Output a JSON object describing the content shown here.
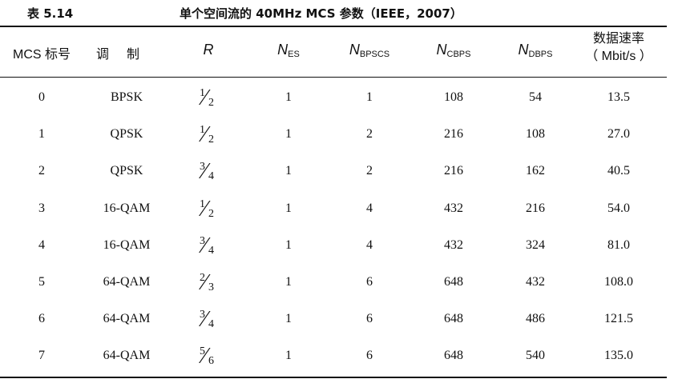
{
  "caption": {
    "label": "表 5.14",
    "title": "单个空间流的 40MHz MCS 参数（IEEE，2007）"
  },
  "headers": {
    "mcs": "MCS 标号",
    "modulation": "调制",
    "r": "R",
    "nes": {
      "main": "N",
      "sub": "ES"
    },
    "nbpscs": {
      "main": "N",
      "sub": "BPSCS"
    },
    "ncbps": {
      "main": "N",
      "sub": "CBPS"
    },
    "ndbps": {
      "main": "N",
      "sub": "DBPS"
    },
    "rate_line1": "数据速率",
    "rate_line2": "（ Mbit/s ）"
  },
  "rows": [
    {
      "mcs": "0",
      "modulation": "BPSK",
      "r_num": "1",
      "r_den": "2",
      "nes": "1",
      "nbpscs": "1",
      "ncbps": "108",
      "ndbps": "54",
      "rate": "13.5"
    },
    {
      "mcs": "1",
      "modulation": "QPSK",
      "r_num": "1",
      "r_den": "2",
      "nes": "1",
      "nbpscs": "2",
      "ncbps": "216",
      "ndbps": "108",
      "rate": "27.0"
    },
    {
      "mcs": "2",
      "modulation": "QPSK",
      "r_num": "3",
      "r_den": "4",
      "nes": "1",
      "nbpscs": "2",
      "ncbps": "216",
      "ndbps": "162",
      "rate": "40.5"
    },
    {
      "mcs": "3",
      "modulation": "16-QAM",
      "r_num": "1",
      "r_den": "2",
      "nes": "1",
      "nbpscs": "4",
      "ncbps": "432",
      "ndbps": "216",
      "rate": "54.0"
    },
    {
      "mcs": "4",
      "modulation": "16-QAM",
      "r_num": "3",
      "r_den": "4",
      "nes": "1",
      "nbpscs": "4",
      "ncbps": "432",
      "ndbps": "324",
      "rate": "81.0"
    },
    {
      "mcs": "5",
      "modulation": "64-QAM",
      "r_num": "2",
      "r_den": "3",
      "nes": "1",
      "nbpscs": "6",
      "ncbps": "648",
      "ndbps": "432",
      "rate": "108.0"
    },
    {
      "mcs": "6",
      "modulation": "64-QAM",
      "r_num": "3",
      "r_den": "4",
      "nes": "1",
      "nbpscs": "6",
      "ncbps": "648",
      "ndbps": "486",
      "rate": "121.5"
    },
    {
      "mcs": "7",
      "modulation": "64-QAM",
      "r_num": "5",
      "r_den": "6",
      "nes": "1",
      "nbpscs": "6",
      "ncbps": "648",
      "ndbps": "540",
      "rate": "135.0"
    }
  ]
}
